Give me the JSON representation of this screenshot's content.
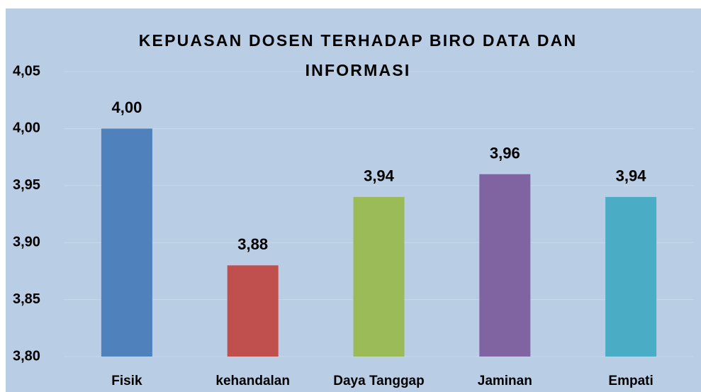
{
  "chart_data": {
    "type": "bar",
    "title": "KEPUASAN DOSEN TERHADAP BIRO DATA DAN INFORMASI",
    "categories": [
      "Fisik",
      "kehandalan",
      "Daya Tanggap",
      "Jaminan",
      "Empati"
    ],
    "values": [
      4.0,
      3.88,
      3.94,
      3.96,
      3.94
    ],
    "value_labels": [
      "4,00",
      "3,88",
      "3,94",
      "3,96",
      "3,94"
    ],
    "colors": [
      "#4f81bd",
      "#c0504d",
      "#9bbb59",
      "#8064a2",
      "#4bacc6"
    ],
    "ylim": [
      3.8,
      4.05
    ],
    "yticks": [
      {
        "value": 3.8,
        "label": "3,80"
      },
      {
        "value": 3.85,
        "label": "3,85"
      },
      {
        "value": 3.9,
        "label": "3,90"
      },
      {
        "value": 3.95,
        "label": "3,95"
      },
      {
        "value": 4.0,
        "label": "4,00"
      },
      {
        "value": 4.05,
        "label": "4,05"
      }
    ],
    "grid": true
  }
}
